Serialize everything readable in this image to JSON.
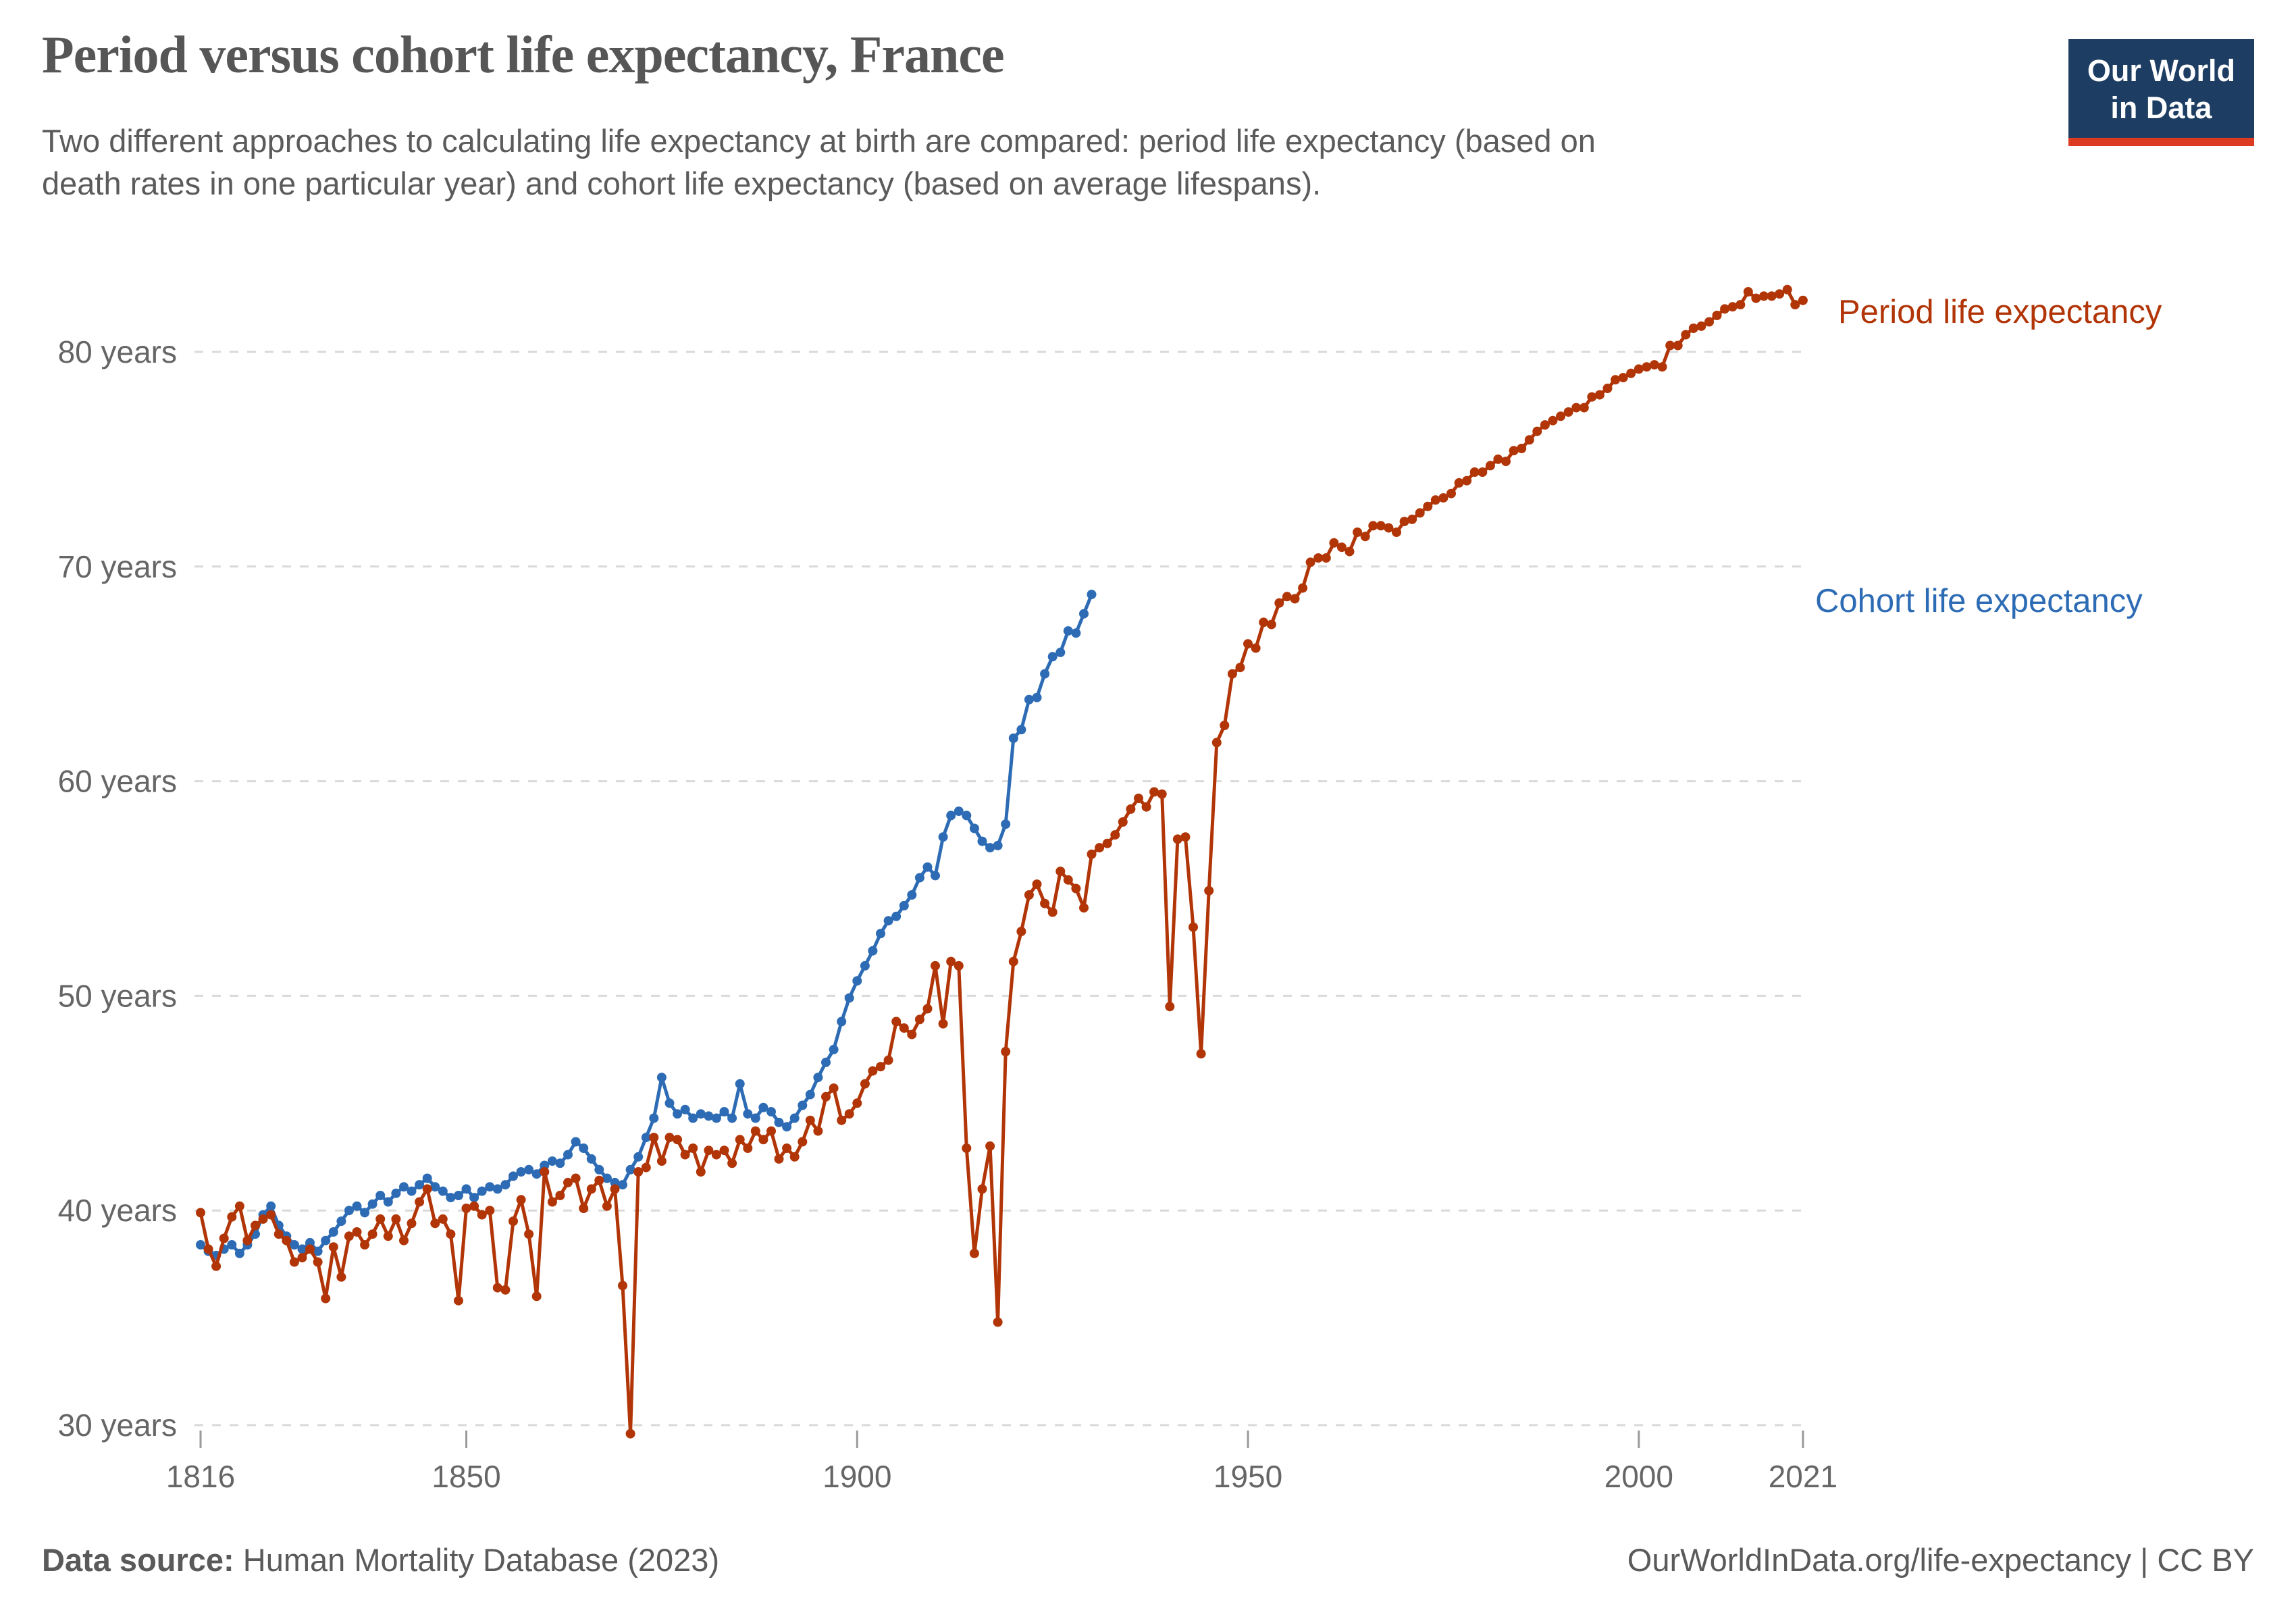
{
  "header": {
    "title": "Period versus cohort life expectancy, France",
    "subtitle_lines": [
      "Two different approaches to calculating life expectancy at birth are compared: period life expectancy (based on",
      "death rates in one particular year) and cohort life expectancy (based on average lifespans)."
    ],
    "logo": {
      "lines": [
        "Our World",
        "in Data"
      ],
      "bg_color": "#1d3d63",
      "bar_color": "#dc3b22"
    }
  },
  "footer": {
    "source_label": "Data source:",
    "source_value": " Human Mortality Database (2023)",
    "right_text": "OurWorldInData.org/life-expectancy | CC BY"
  },
  "chart_data": {
    "type": "line",
    "title": "Period versus cohort life expectancy, France",
    "xlabel": "",
    "ylabel": "",
    "x_domain": [
      1816,
      2021
    ],
    "y_domain": [
      30,
      83.5
    ],
    "x_ticks": [
      1816,
      1850,
      1900,
      1950,
      2000,
      2021
    ],
    "y_ticks": [
      30,
      40,
      50,
      60,
      70,
      80
    ],
    "y_tick_suffix": " years",
    "grid": "dashed-horizontal",
    "legend_position": "end-of-line-labels-right",
    "colors": {
      "grid": "#d9d9d9",
      "axis_tick": "#9a9a9a",
      "tick_label": "#666666"
    },
    "series": [
      {
        "id": "cohort",
        "name": "Cohort life expectancy",
        "color": "#2d6cb5",
        "start_year": 1816,
        "values": [
          38.4,
          38.1,
          37.9,
          38.2,
          38.4,
          38.0,
          38.4,
          38.9,
          39.8,
          40.2,
          39.3,
          38.8,
          38.4,
          38.2,
          38.5,
          38.1,
          38.6,
          39.0,
          39.5,
          40.0,
          40.2,
          39.9,
          40.3,
          40.7,
          40.4,
          40.8,
          41.1,
          40.9,
          41.2,
          41.5,
          41.1,
          40.9,
          40.6,
          40.7,
          41.0,
          40.6,
          40.9,
          41.1,
          41.0,
          41.2,
          41.6,
          41.8,
          41.9,
          41.7,
          42.1,
          42.3,
          42.2,
          42.6,
          43.2,
          42.9,
          42.4,
          41.9,
          41.5,
          41.3,
          41.2,
          41.9,
          42.5,
          43.4,
          44.3,
          46.2,
          45.0,
          44.5,
          44.7,
          44.3,
          44.5,
          44.4,
          44.3,
          44.6,
          44.3,
          45.9,
          44.5,
          44.3,
          44.8,
          44.6,
          44.1,
          43.9,
          44.3,
          44.9,
          45.4,
          46.2,
          46.9,
          47.5,
          48.8,
          49.9,
          50.7,
          51.4,
          52.1,
          52.9,
          53.5,
          53.7,
          54.2,
          54.7,
          55.5,
          56.0,
          55.6,
          57.4,
          58.4,
          58.6,
          58.4,
          57.8,
          57.2,
          56.9,
          57.0,
          58.0,
          62.0,
          62.4,
          63.8,
          63.9,
          65.0,
          65.8,
          66.0,
          67.0,
          66.9,
          67.8,
          68.7
        ]
      },
      {
        "id": "period",
        "name": "Period life expectancy",
        "color": "#b13507",
        "start_year": 1816,
        "values": [
          39.9,
          38.2,
          37.4,
          38.7,
          39.7,
          40.2,
          38.6,
          39.3,
          39.6,
          39.8,
          38.9,
          38.6,
          37.6,
          37.8,
          38.2,
          37.6,
          35.9,
          38.3,
          36.9,
          38.8,
          39.0,
          38.4,
          38.9,
          39.6,
          38.8,
          39.6,
          38.6,
          39.4,
          40.4,
          41.0,
          39.4,
          39.6,
          38.9,
          35.8,
          40.1,
          40.2,
          39.8,
          40.0,
          36.4,
          36.3,
          39.5,
          40.5,
          38.9,
          36.0,
          41.8,
          40.4,
          40.7,
          41.3,
          41.5,
          40.1,
          41.0,
          41.4,
          40.2,
          41.0,
          36.5,
          29.6,
          41.8,
          42.0,
          43.4,
          42.3,
          43.4,
          43.3,
          42.6,
          42.9,
          41.8,
          42.8,
          42.6,
          42.8,
          42.2,
          43.3,
          42.9,
          43.7,
          43.3,
          43.7,
          42.4,
          42.9,
          42.5,
          43.2,
          44.2,
          43.7,
          45.3,
          45.7,
          44.2,
          44.5,
          45.0,
          45.9,
          46.5,
          46.7,
          47.0,
          48.8,
          48.5,
          48.2,
          48.9,
          49.4,
          51.4,
          48.7,
          51.6,
          51.4,
          42.9,
          38.0,
          41.0,
          43.0,
          34.8,
          47.4,
          51.6,
          53.0,
          54.7,
          55.2,
          54.3,
          53.9,
          55.8,
          55.4,
          55.0,
          54.1,
          56.6,
          56.9,
          57.1,
          57.5,
          58.1,
          58.7,
          59.2,
          58.8,
          59.5,
          59.4,
          49.5,
          57.3,
          57.4,
          53.2,
          47.3,
          54.9,
          61.8,
          62.6,
          65.0,
          65.3,
          66.4,
          66.2,
          67.4,
          67.3,
          68.3,
          68.6,
          68.5,
          69.0,
          70.2,
          70.4,
          70.4,
          71.1,
          70.9,
          70.7,
          71.6,
          71.4,
          71.9,
          71.9,
          71.8,
          71.6,
          72.1,
          72.2,
          72.5,
          72.8,
          73.1,
          73.2,
          73.4,
          73.9,
          74.0,
          74.4,
          74.4,
          74.7,
          75.0,
          74.9,
          75.4,
          75.5,
          75.9,
          76.3,
          76.6,
          76.8,
          77.0,
          77.2,
          77.4,
          77.4,
          77.9,
          78.0,
          78.3,
          78.7,
          78.8,
          79.0,
          79.2,
          79.3,
          79.4,
          79.3,
          80.3,
          80.3,
          80.8,
          81.1,
          81.2,
          81.4,
          81.7,
          82.0,
          82.1,
          82.2,
          82.8,
          82.5,
          82.6,
          82.6,
          82.7,
          82.9,
          82.2,
          82.4
        ]
      }
    ]
  }
}
